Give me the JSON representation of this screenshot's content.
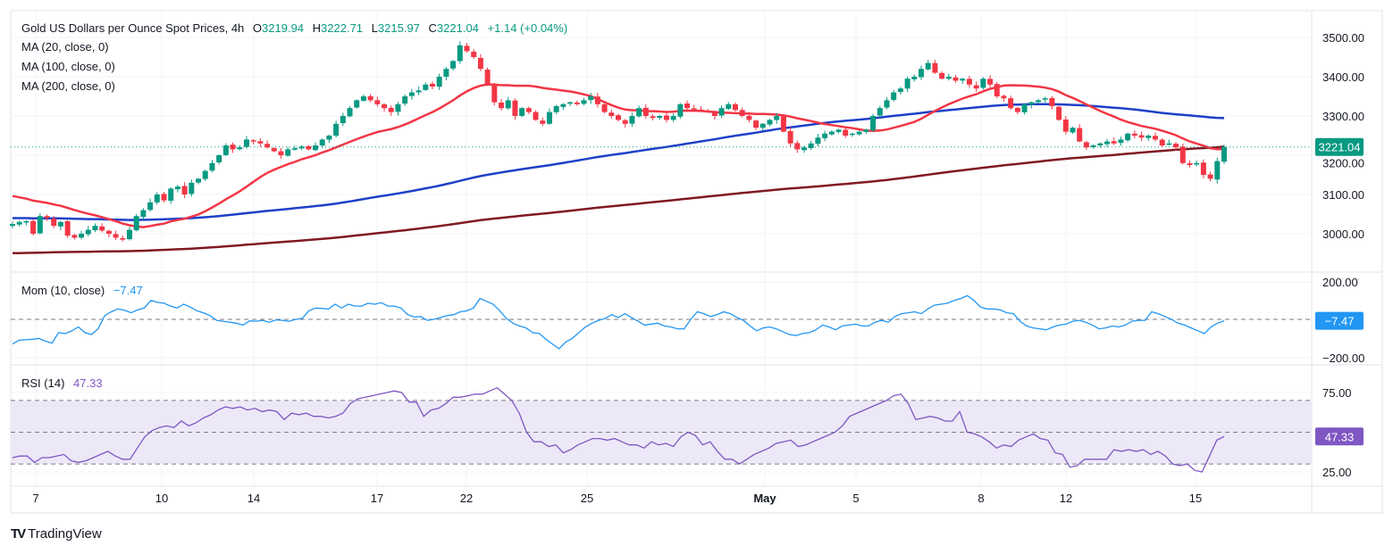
{
  "header": {
    "symbol_title": "Gold US Dollars per Ounce Spot Prices, 4h",
    "open_label": "O",
    "open": "3219.94",
    "high_label": "H",
    "high": "3222.71",
    "low_label": "L",
    "low": "3215.97",
    "close_label": "C",
    "close": "3221.04",
    "change": "+1.14 (+0.04%)"
  },
  "indicators": {
    "ma20": "MA (20, close, 0)",
    "ma100": "MA (100, close, 0)",
    "ma200": "MA (200, close, 0)",
    "mom_label": "Mom (10, close)",
    "mom_value": "−7.47",
    "rsi_label": "RSI (14)",
    "rsi_value": "47.33"
  },
  "brand": {
    "logo": "TV",
    "name": "TradingView"
  },
  "colors": {
    "up": "#089981",
    "down": "#f23645",
    "ma20": "#f23645",
    "ma100": "#1e40c8",
    "ma200": "#801922",
    "mom": "#2196f3",
    "rsi": "#7e57c2",
    "rsi_band": "#ede8f7"
  },
  "chart_data": [
    {
      "type": "candlestick",
      "title": "Gold US Dollars per Ounce Spot Prices, 4h",
      "ylim": [
        2960,
        3520
      ],
      "y_ticks": [
        "3500.00",
        "3400.00",
        "3300.00",
        "3200.00",
        "3100.00",
        "3000.00"
      ],
      "x_ticks": [
        "7",
        "10",
        "14",
        "17",
        "22",
        "25",
        "May",
        "5",
        "8",
        "12",
        "15"
      ],
      "last_price_label": "3221.04",
      "last_price": 3221.04,
      "close_path": [
        3025,
        3030,
        3032,
        3000,
        3045,
        3040,
        3020,
        3030,
        2995,
        2990,
        3000,
        3010,
        3020,
        3008,
        3000,
        2990,
        2985,
        3010,
        3045,
        3060,
        3080,
        3100,
        3085,
        3115,
        3120,
        3100,
        3130,
        3140,
        3160,
        3180,
        3200,
        3225,
        3215,
        3220,
        3240,
        3235,
        3230,
        3220,
        3210,
        3200,
        3215,
        3218,
        3222,
        3215,
        3225,
        3240,
        3250,
        3280,
        3300,
        3320,
        3340,
        3350,
        3340,
        3330,
        3320,
        3310,
        3330,
        3350,
        3360,
        3365,
        3380,
        3375,
        3400,
        3420,
        3440,
        3480,
        3465,
        3450,
        3420,
        3380,
        3335,
        3320,
        3340,
        3300,
        3320,
        3310,
        3290,
        3280,
        3310,
        3325,
        3330,
        3335,
        3330,
        3340,
        3350,
        3330,
        3310,
        3300,
        3290,
        3280,
        3300,
        3320,
        3300,
        3295,
        3300,
        3290,
        3300,
        3330,
        3320,
        3318,
        3315,
        3310,
        3300,
        3320,
        3330,
        3315,
        3300,
        3290,
        3270,
        3280,
        3290,
        3300,
        3260,
        3230,
        3215,
        3220,
        3230,
        3245,
        3255,
        3260,
        3265,
        3250,
        3255,
        3260,
        3265,
        3300,
        3320,
        3340,
        3360,
        3370,
        3395,
        3400,
        3420,
        3435,
        3410,
        3395,
        3400,
        3390,
        3395,
        3380,
        3370,
        3395,
        3380,
        3350,
        3345,
        3320,
        3310,
        3330,
        3335,
        3340,
        3345,
        3325,
        3290,
        3260,
        3270,
        3235,
        3220,
        3225,
        3230,
        3235,
        3230,
        3240,
        3255,
        3250,
        3245,
        3250,
        3240,
        3225,
        3230,
        3220,
        3180,
        3175,
        3180,
        3150,
        3140,
        3185,
        3221.04
      ],
      "ma20_last": 3222,
      "ma100_last": 3291,
      "ma200_last": 3240
    },
    {
      "type": "line",
      "title": "Mom (10, close)",
      "ylim": [
        -240,
        240
      ],
      "y_ticks": [
        "200.00",
        "-200.00"
      ],
      "zero_line": 0,
      "last_value": -7.47,
      "last_label": "−7.47",
      "values": [
        -130,
        -110,
        -108,
        -105,
        -100,
        -115,
        -125,
        -70,
        -75,
        -60,
        -40,
        -70,
        -80,
        -50,
        20,
        40,
        55,
        48,
        35,
        50,
        60,
        100,
        90,
        85,
        70,
        60,
        80,
        65,
        45,
        35,
        20,
        -5,
        -10,
        -15,
        -20,
        -30,
        -8,
        -10,
        -5,
        -15,
        -3,
        -5,
        -10,
        0,
        5,
        45,
        60,
        58,
        55,
        80,
        60,
        80,
        70,
        70,
        85,
        80,
        88,
        70,
        70,
        60,
        25,
        12,
        15,
        -5,
        0,
        10,
        20,
        25,
        40,
        45,
        60,
        110,
        95,
        80,
        45,
        5,
        -20,
        -35,
        -45,
        -70,
        -75,
        -105,
        -130,
        -155,
        -120,
        -100,
        -70,
        -40,
        -20,
        -5,
        5,
        25,
        10,
        30,
        10,
        -10,
        -30,
        -25,
        -20,
        -35,
        -40,
        -50,
        -50,
        0,
        40,
        30,
        15,
        25,
        40,
        30,
        10,
        -5,
        -35,
        -60,
        -45,
        -40,
        -50,
        -65,
        -80,
        -85,
        -75,
        -70,
        -55,
        -30,
        -40,
        -55,
        -35,
        -30,
        -25,
        -35,
        -35,
        -15,
        -5,
        -15,
        15,
        30,
        35,
        40,
        30,
        55,
        75,
        80,
        85,
        100,
        110,
        125,
        100,
        65,
        55,
        55,
        50,
        35,
        30,
        -10,
        -35,
        -45,
        -50,
        -55,
        -40,
        -30,
        -25,
        -10,
        -5,
        -15,
        -30,
        -50,
        -45,
        -35,
        -40,
        -30,
        -10,
        -5,
        -5,
        40,
        30,
        15,
        0,
        -20,
        -30,
        -45,
        -60,
        -75,
        -40,
        -20,
        -7.47
      ]
    },
    {
      "type": "line",
      "title": "RSI (14)",
      "ylim": [
        20,
        85
      ],
      "y_ticks": [
        "75.00",
        "25.00"
      ],
      "bands": [
        30,
        50,
        70
      ],
      "last_value": 47.33,
      "last_label": "47.33",
      "values": [
        34,
        35,
        35,
        31,
        34,
        34,
        35,
        36,
        32,
        31,
        32,
        34,
        36,
        38,
        35,
        33,
        33,
        40,
        47,
        51,
        53,
        54,
        53,
        57,
        54,
        56,
        59,
        61,
        64,
        66,
        65,
        66,
        64,
        65,
        63,
        64,
        63,
        58,
        62,
        61,
        62,
        60,
        60,
        59,
        60,
        62,
        68,
        71,
        72,
        73,
        74,
        75,
        76,
        75,
        69,
        69,
        60,
        64,
        65,
        68,
        72,
        72,
        73,
        74,
        74,
        76,
        78,
        74,
        70,
        62,
        50,
        44,
        44,
        41,
        42,
        37,
        39,
        42,
        44,
        46,
        46,
        45,
        46,
        44,
        42,
        42,
        40,
        44,
        42,
        43,
        41,
        47,
        50,
        48,
        42,
        44,
        38,
        33,
        33,
        30,
        33,
        36,
        38,
        40,
        43,
        44,
        45,
        41,
        42,
        44,
        46,
        48,
        50,
        54,
        60,
        62,
        64,
        66,
        68,
        70,
        73,
        74,
        68,
        58,
        59,
        60,
        59,
        57,
        57,
        63,
        50,
        49,
        47,
        44,
        40,
        42,
        41,
        45,
        47,
        49,
        46,
        45,
        37,
        36,
        28,
        29,
        33,
        33,
        33,
        33,
        39,
        38,
        39,
        38,
        39,
        36,
        38,
        35,
        30,
        29,
        30,
        26,
        25,
        35,
        45,
        47.33
      ]
    }
  ]
}
